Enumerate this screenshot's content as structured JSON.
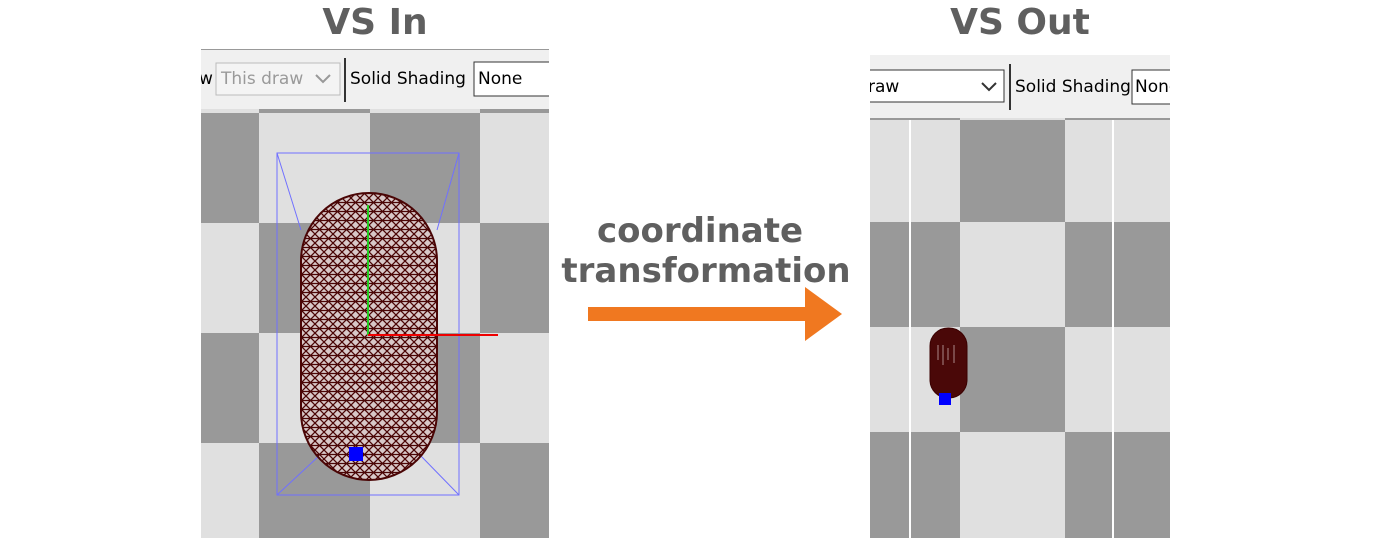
{
  "labels": {
    "left": "VS In",
    "right": "VS Out",
    "arrow": [
      "coordinate",
      "transformation"
    ]
  },
  "left_toolbar": {
    "clipped": "w",
    "select": "This draw",
    "shading_label": "Solid Shading",
    "shading_value": "None"
  },
  "right_toolbar": {
    "select": "raw",
    "shading_label": "Solid Shading",
    "shading_value": "None"
  }
}
